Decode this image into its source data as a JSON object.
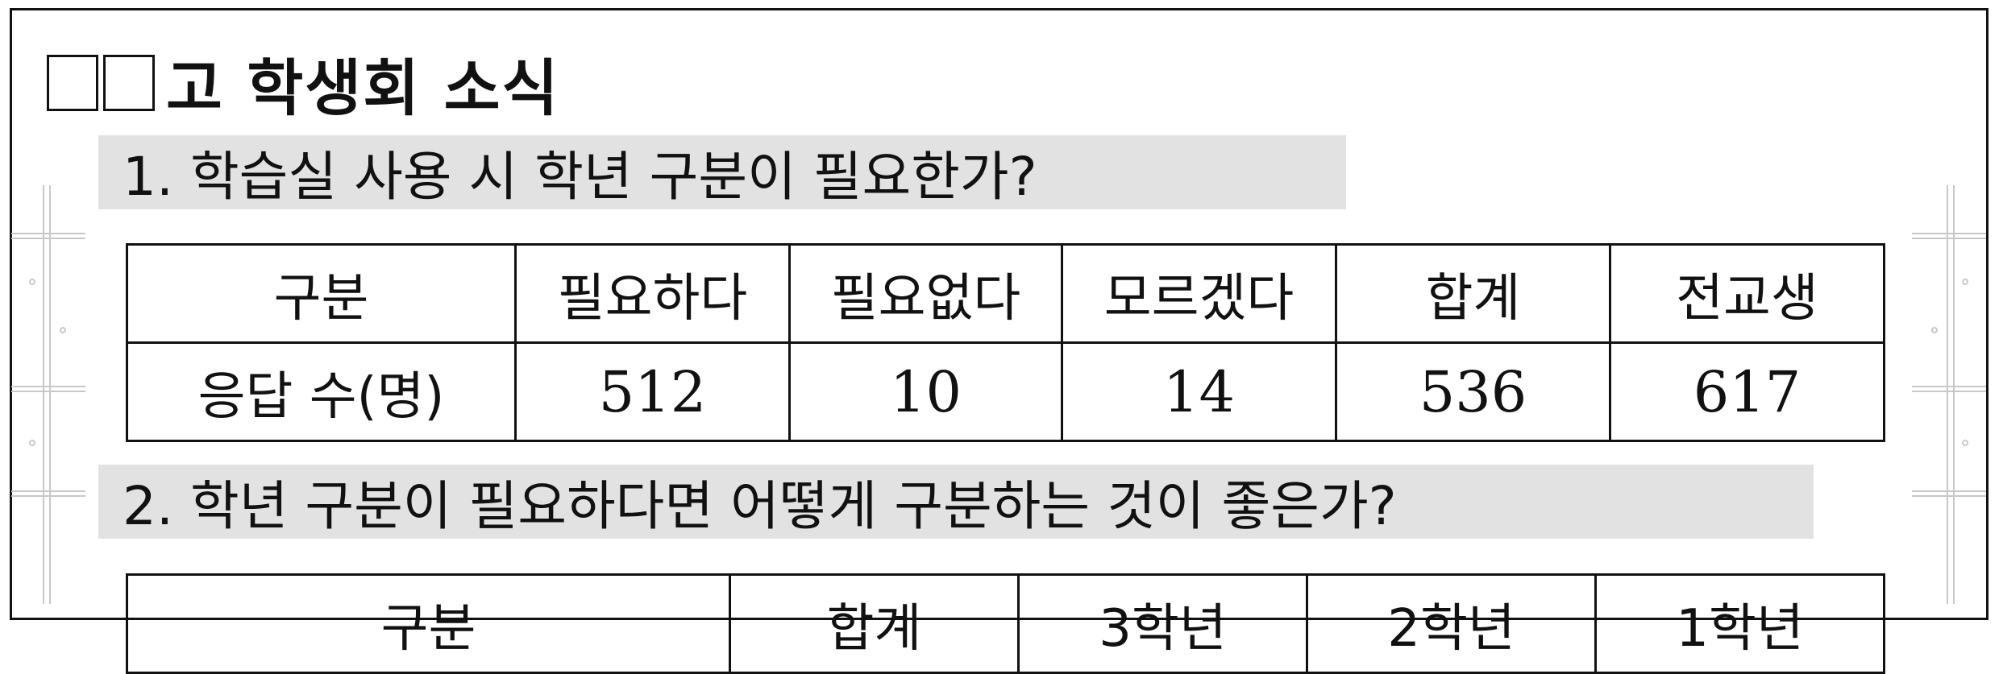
{
  "title": {
    "boxes": 2,
    "text": "고 학생회 소식"
  },
  "q1": {
    "question": "1. 학습실 사용 시 학년 구분이 필요한가?",
    "table": {
      "headers": [
        "구분",
        "필요하다",
        "필요없다",
        "모르겠다",
        "합계",
        "전교생"
      ],
      "row_label": "응답 수(명)",
      "values": [
        "512",
        "10",
        "14",
        "536",
        "617"
      ]
    }
  },
  "q2": {
    "question": "2. 학년 구분이 필요하다면 어떻게 구분하는 것이 좋은가?",
    "table": {
      "headers": [
        "구분",
        "합계",
        "3학년",
        "2학년",
        "1학년"
      ]
    }
  }
}
